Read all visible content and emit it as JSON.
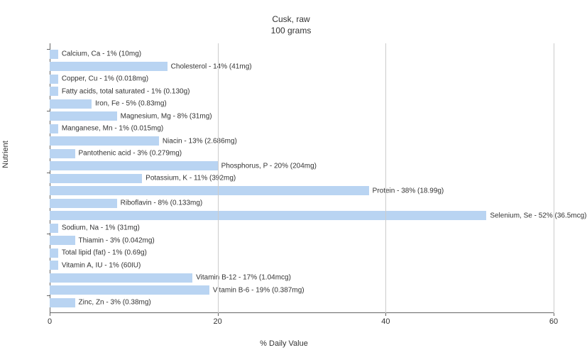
{
  "chart": {
    "type": "bar-horizontal",
    "title_line1": "Cusk, raw",
    "title_line2": "100 grams",
    "title_fontsize": 12,
    "xlabel": "% Daily Value",
    "ylabel": "Nutrient",
    "label_fontsize": 11,
    "xlim": [
      0,
      60
    ],
    "xticks": [
      0,
      20,
      40,
      60
    ],
    "bar_color": "#b9d4f2",
    "background_color": "#ffffff",
    "grid_color": "#cccccc",
    "axis_color": "#666666",
    "text_color": "#333333",
    "bar_label_fontsize": 10,
    "y_major_tick_every": 5,
    "nutrients": [
      {
        "label": "Calcium, Ca - 1% (10mg)",
        "value": 1
      },
      {
        "label": "Cholesterol - 14% (41mg)",
        "value": 14
      },
      {
        "label": "Copper, Cu - 1% (0.018mg)",
        "value": 1
      },
      {
        "label": "Fatty acids, total saturated - 1% (0.130g)",
        "value": 1
      },
      {
        "label": "Iron, Fe - 5% (0.83mg)",
        "value": 5
      },
      {
        "label": "Magnesium, Mg - 8% (31mg)",
        "value": 8
      },
      {
        "label": "Manganese, Mn - 1% (0.015mg)",
        "value": 1
      },
      {
        "label": "Niacin - 13% (2.686mg)",
        "value": 13
      },
      {
        "label": "Pantothenic acid - 3% (0.279mg)",
        "value": 3
      },
      {
        "label": "Phosphorus, P - 20% (204mg)",
        "value": 20
      },
      {
        "label": "Potassium, K - 11% (392mg)",
        "value": 11
      },
      {
        "label": "Protein - 38% (18.99g)",
        "value": 38
      },
      {
        "label": "Riboflavin - 8% (0.133mg)",
        "value": 8
      },
      {
        "label": "Selenium, Se - 52% (36.5mcg)",
        "value": 52
      },
      {
        "label": "Sodium, Na - 1% (31mg)",
        "value": 1
      },
      {
        "label": "Thiamin - 3% (0.042mg)",
        "value": 3
      },
      {
        "label": "Total lipid (fat) - 1% (0.69g)",
        "value": 1
      },
      {
        "label": "Vitamin A, IU - 1% (60IU)",
        "value": 1
      },
      {
        "label": "Vitamin B-12 - 17% (1.04mcg)",
        "value": 17
      },
      {
        "label": "Vitamin B-6 - 19% (0.387mg)",
        "value": 19
      },
      {
        "label": "Zinc, Zn - 3% (0.38mg)",
        "value": 3
      }
    ]
  }
}
